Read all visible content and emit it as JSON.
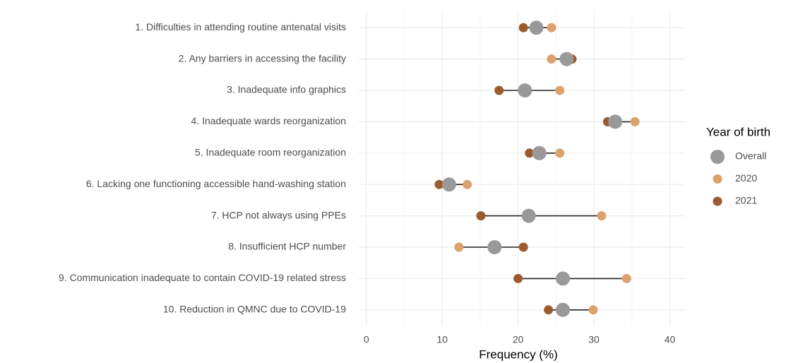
{
  "chart_data": {
    "type": "dumbbell",
    "x_label": "Frequency (%)",
    "categories": [
      "1. Difficulties in attending routine antenatal visits",
      "2. Any barriers in accessing the facility",
      "3. Inadequate info graphics",
      "4. Inadequate wards reorganization",
      "5. Inadequate room reorganization",
      "6. Lacking one functioning accessible hand-washing station",
      "7. HCP not always using PPEs",
      "8. Insufficient HCP number",
      "9. Communication inadequate to contain COVID-19 related stress",
      "10. Reduction in QMNC due to COVID-19"
    ],
    "series": [
      {
        "name": "Overall",
        "color": "#999999",
        "values": [
          22.4,
          26.4,
          20.9,
          32.8,
          22.8,
          10.9,
          21.4,
          16.9,
          25.9,
          25.9
        ]
      },
      {
        "name": "2020",
        "color": "#dba26e",
        "values": [
          24.4,
          24.4,
          25.5,
          35.4,
          25.5,
          13.3,
          31.0,
          12.2,
          34.3,
          29.9
        ]
      },
      {
        "name": "2021",
        "color": "#9c5b2c",
        "values": [
          20.7,
          27.1,
          17.5,
          31.8,
          21.5,
          9.6,
          15.1,
          20.7,
          20.0,
          24.0
        ]
      }
    ],
    "legend_title": "Year of birth",
    "legend_position": "right",
    "xlim": [
      -1,
      42
    ],
    "xticks": [
      0,
      10,
      20,
      30,
      40
    ],
    "x_minor_ticks": [
      5,
      15,
      25,
      35
    ],
    "grid": true
  }
}
